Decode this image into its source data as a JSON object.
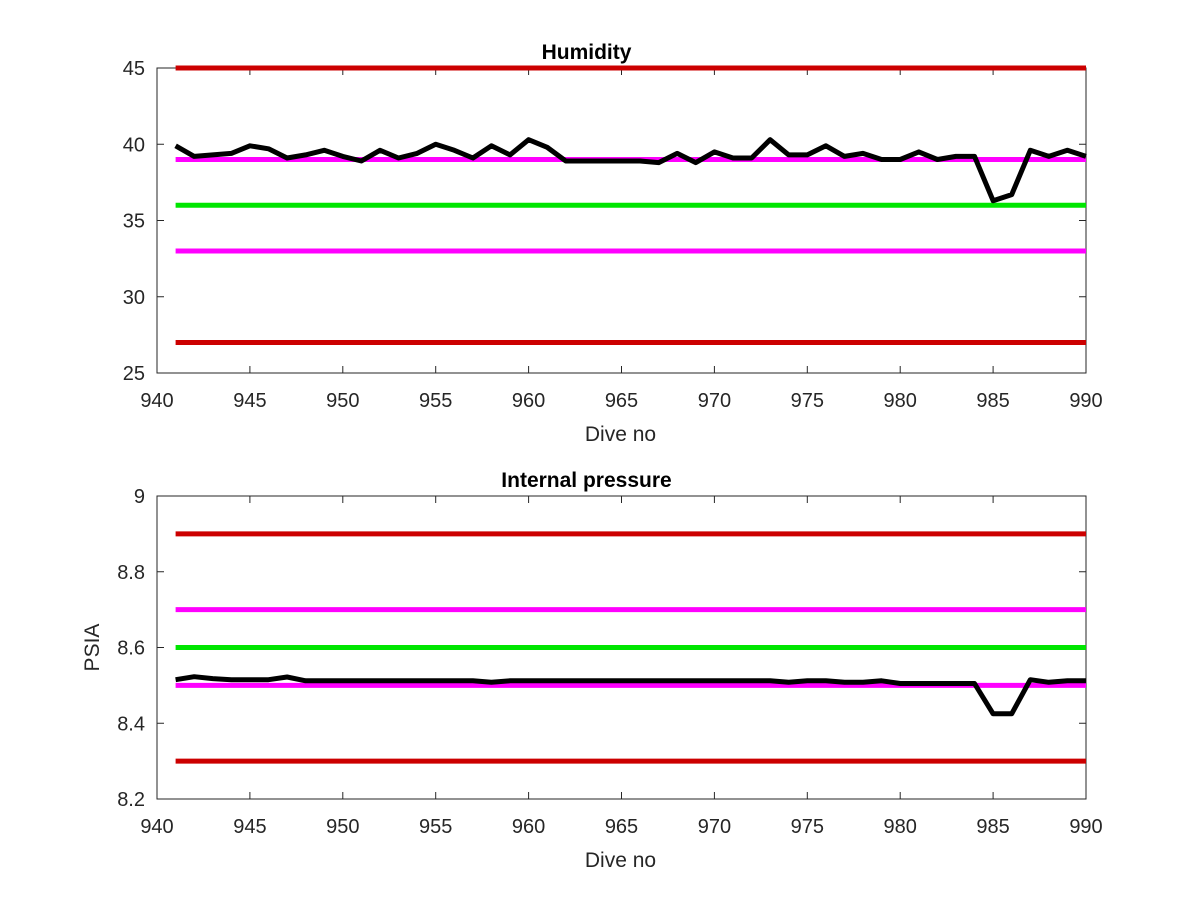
{
  "chart_data": [
    {
      "type": "line",
      "title": "Humidity",
      "xlabel": "Dive no",
      "ylabel": "",
      "xlim": [
        940,
        990
      ],
      "ylim": [
        25,
        45
      ],
      "xticks": [
        "940",
        "945",
        "950",
        "955",
        "960",
        "965",
        "970",
        "975",
        "980",
        "985",
        "990"
      ],
      "yticks": [
        "25",
        "30",
        "35",
        "40",
        "45"
      ],
      "grid": false,
      "legend": "none",
      "series": [
        {
          "color": "#000000",
          "x": [
            941,
            942,
            943,
            944,
            945,
            946,
            947,
            948,
            949,
            950,
            951,
            952,
            953,
            954,
            955,
            956,
            957,
            958,
            959,
            960,
            961,
            962,
            963,
            964,
            965,
            966,
            967,
            968,
            969,
            970,
            971,
            972,
            973,
            974,
            975,
            976,
            977,
            978,
            979,
            980,
            981,
            982,
            983,
            984,
            985,
            986,
            987,
            988,
            989,
            990
          ],
          "y": [
            39.9,
            39.2,
            39.3,
            39.4,
            39.9,
            39.7,
            39.1,
            39.3,
            39.6,
            39.2,
            38.9,
            39.6,
            39.1,
            39.4,
            40.0,
            39.6,
            39.1,
            39.9,
            39.3,
            40.3,
            39.8,
            38.9,
            38.9,
            38.9,
            38.9,
            38.9,
            38.8,
            39.4,
            38.8,
            39.5,
            39.1,
            39.1,
            40.3,
            39.3,
            39.3,
            39.9,
            39.2,
            39.4,
            39.0,
            39.0,
            39.5,
            39.0,
            39.2,
            39.2,
            36.3,
            36.7,
            39.6,
            39.2,
            39.6,
            39.2
          ]
        },
        {
          "color": "#cc0000",
          "x": [
            941,
            990
          ],
          "y": [
            45,
            45
          ]
        },
        {
          "color": "#ff00ff",
          "x": [
            941,
            990
          ],
          "y": [
            39,
            39
          ]
        },
        {
          "color": "#00e600",
          "x": [
            941,
            990
          ],
          "y": [
            36,
            36
          ]
        },
        {
          "color": "#ff00ff",
          "x": [
            941,
            990
          ],
          "y": [
            33,
            33
          ]
        },
        {
          "color": "#cc0000",
          "x": [
            941,
            990
          ],
          "y": [
            27,
            27
          ]
        }
      ]
    },
    {
      "type": "line",
      "title": "Internal pressure",
      "xlabel": "Dive no",
      "ylabel": "PSIA",
      "xlim": [
        940,
        990
      ],
      "ylim": [
        8.2,
        9
      ],
      "xticks": [
        "940",
        "945",
        "950",
        "955",
        "960",
        "965",
        "970",
        "975",
        "980",
        "985",
        "990"
      ],
      "yticks": [
        "8.2",
        "8.4",
        "8.6",
        "8.8",
        "9"
      ],
      "grid": false,
      "legend": "none",
      "series": [
        {
          "color": "#000000",
          "x": [
            941,
            942,
            943,
            944,
            945,
            946,
            947,
            948,
            949,
            950,
            951,
            952,
            953,
            954,
            955,
            956,
            957,
            958,
            959,
            960,
            961,
            962,
            963,
            964,
            965,
            966,
            967,
            968,
            969,
            970,
            971,
            972,
            973,
            974,
            975,
            976,
            977,
            978,
            979,
            980,
            981,
            982,
            983,
            984,
            985,
            986,
            987,
            988,
            989,
            990
          ],
          "y": [
            8.515,
            8.523,
            8.518,
            8.515,
            8.515,
            8.515,
            8.522,
            8.512,
            8.512,
            8.512,
            8.512,
            8.512,
            8.512,
            8.512,
            8.512,
            8.512,
            8.512,
            8.508,
            8.512,
            8.512,
            8.512,
            8.512,
            8.512,
            8.512,
            8.512,
            8.512,
            8.512,
            8.512,
            8.512,
            8.512,
            8.512,
            8.512,
            8.512,
            8.508,
            8.512,
            8.512,
            8.508,
            8.508,
            8.512,
            8.505,
            8.505,
            8.505,
            8.505,
            8.505,
            8.425,
            8.425,
            8.515,
            8.508,
            8.512,
            8.512
          ]
        },
        {
          "color": "#cc0000",
          "x": [
            941,
            990
          ],
          "y": [
            8.9,
            8.9
          ]
        },
        {
          "color": "#ff00ff",
          "x": [
            941,
            990
          ],
          "y": [
            8.7,
            8.7
          ]
        },
        {
          "color": "#00e600",
          "x": [
            941,
            990
          ],
          "y": [
            8.6,
            8.6
          ]
        },
        {
          "color": "#ff00ff",
          "x": [
            941,
            990
          ],
          "y": [
            8.5,
            8.5
          ]
        },
        {
          "color": "#cc0000",
          "x": [
            941,
            990
          ],
          "y": [
            8.3,
            8.3
          ]
        }
      ]
    }
  ]
}
